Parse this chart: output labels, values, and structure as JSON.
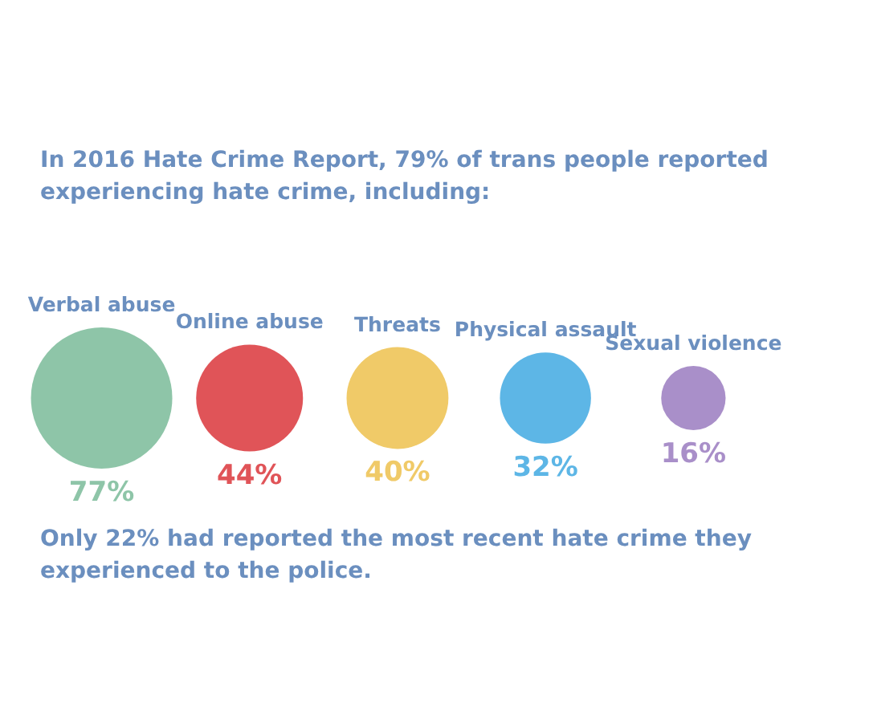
{
  "chart_data": {
    "type": "other",
    "title": "In 2016 Hate Crime Report, 79% of trans people reported experiencing hate crime, including:",
    "categories": [
      "Verbal abuse",
      "Online abuse",
      "Threats",
      "Physical assault",
      "Sexual violence"
    ],
    "values": [
      77,
      44,
      40,
      32,
      16
    ],
    "value_labels": [
      "77%",
      "44%",
      "40%",
      "32%",
      "16%"
    ],
    "colors": [
      "#8ec5a8",
      "#e05458",
      "#f0ca68",
      "#5db6e6",
      "#a98fc9"
    ],
    "annotations": [
      "Only 22% had reported the most recent hate crime they experienced to the police."
    ]
  }
}
